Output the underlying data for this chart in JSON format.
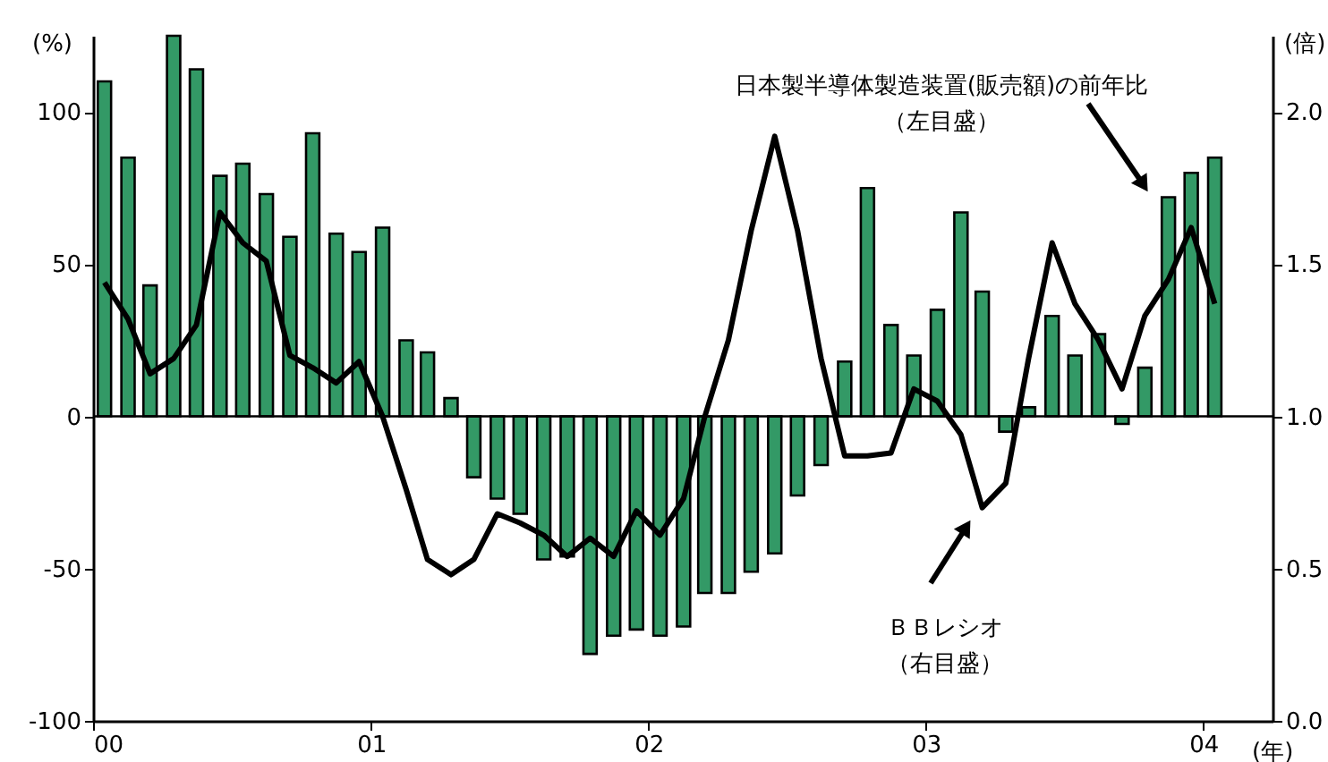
{
  "chart_data": {
    "type": "bar",
    "xlabel": "(年)",
    "ylabel": "(%)",
    "y2label": "(倍)",
    "annotations": [
      "日本製半導体製造装置(販売額)の前年比（左目盛）",
      "ＢＢレシオ（右目盛）"
    ],
    "x": [
      "2000-01-16",
      "2000-02-16",
      "2000-03-16",
      "2000-04-16",
      "2000-05-16",
      "2000-06-16",
      "2000-07-16",
      "2000-08-16",
      "2000-09-16",
      "2000-10-16",
      "2000-11-16",
      "2000-12-16",
      "2001-01-16",
      "2001-02-16",
      "2001-03-16",
      "2001-04-16",
      "2001-05-16",
      "2001-06-16",
      "2001-07-16",
      "2001-08-16",
      "2001-09-16",
      "2001-10-16",
      "2001-11-16",
      "2001-12-16",
      "2002-01-16",
      "2002-02-16",
      "2002-03-16",
      "2002-04-16",
      "2002-05-16",
      "2002-06-16",
      "2002-07-16",
      "2002-08-16",
      "2002-09-16",
      "2002-10-16",
      "2002-11-16",
      "2002-12-16",
      "2003-01-16",
      "2003-02-16",
      "2003-03-16",
      "2003-04-16",
      "2003-05-16",
      "2003-06-16",
      "2003-07-16",
      "2003-08-16",
      "2003-09-16",
      "2003-10-16",
      "2003-11-16",
      "2003-12-16",
      "2004-01-16"
    ],
    "xlim": [
      "2000-01-01",
      "2004-04-01"
    ],
    "xticks": [
      {
        "value": "2000-01-01",
        "label": "00"
      },
      {
        "value": "2001-01-01",
        "label": "01"
      },
      {
        "value": "2002-01-01",
        "label": "02"
      },
      {
        "value": "2003-01-01",
        "label": "03"
      },
      {
        "value": "2004-01-01",
        "label": "04"
      }
    ],
    "ylim": [
      -100,
      125
    ],
    "yticks": [
      -100,
      -50,
      0,
      50,
      100
    ],
    "y2lim": [
      0,
      2.25
    ],
    "y2ticks": [
      {
        "value": 0,
        "label": "0.0"
      },
      {
        "value": 0.5,
        "label": "0.5"
      },
      {
        "value": 1,
        "label": "1.0"
      },
      {
        "value": 1.5,
        "label": "1.5"
      },
      {
        "value": 2,
        "label": "2.0"
      }
    ],
    "ref_lines": [
      {
        "axis": "y",
        "value": 0,
        "color": "#000000"
      }
    ],
    "grid": false,
    "series": [
      {
        "color": "#339966",
        "values": [
          110,
          85,
          43,
          125,
          114,
          79,
          83,
          73,
          59,
          93,
          60,
          54,
          62,
          25,
          21,
          6,
          -20,
          -27,
          -32,
          -47,
          -46,
          -78,
          -72,
          -70,
          -72,
          -69,
          -58,
          -58,
          -51,
          -45,
          -26,
          -16,
          18,
          75,
          30,
          20,
          35,
          67,
          41,
          -5,
          3,
          33,
          20,
          27,
          -2.5,
          16,
          72,
          80,
          85
        ]
      },
      {
        "type": "line",
        "axis": "y2",
        "color": "#000000",
        "values": [
          1.44,
          1.32,
          1.14,
          1.19,
          1.3,
          1.67,
          1.57,
          1.51,
          1.2,
          1.16,
          1.11,
          1.18,
          1.0,
          0.76,
          0.53,
          0.48,
          0.53,
          0.68,
          0.65,
          0.61,
          0.54,
          0.6,
          0.54,
          0.69,
          0.61,
          0.73,
          1.0,
          1.25,
          1.61,
          1.92,
          1.61,
          1.19,
          0.87,
          0.87,
          0.88,
          1.09,
          1.05,
          0.94,
          0.7,
          0.78,
          1.19,
          1.57,
          1.37,
          1.25,
          1.09,
          1.33,
          1.45,
          1.62,
          1.37
        ]
      }
    ]
  }
}
